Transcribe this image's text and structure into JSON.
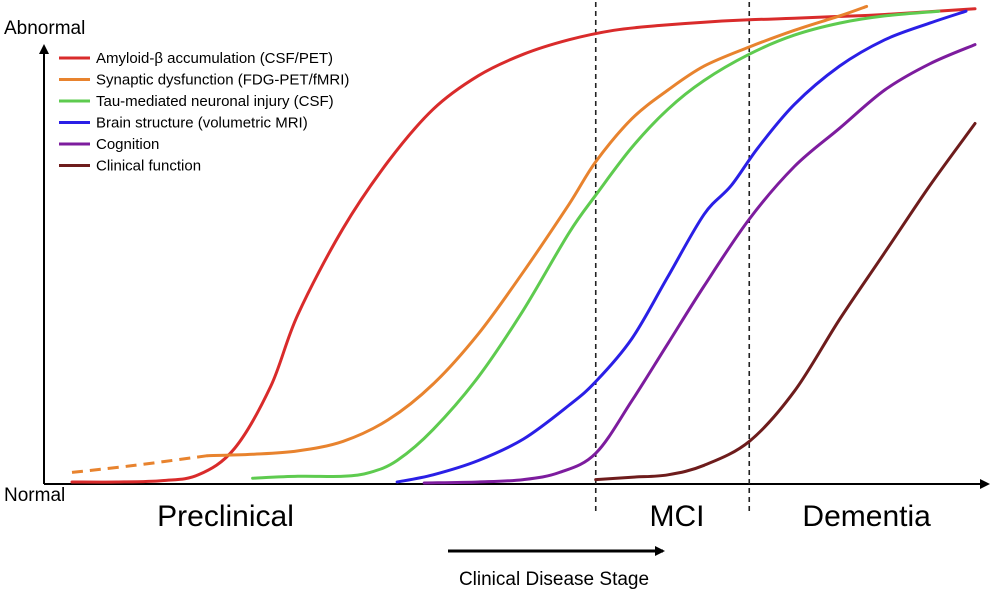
{
  "chart_data": {
    "type": "line",
    "ylabel_top": "Abnormal",
    "ylabel_bottom": "Normal",
    "xlabel": "Clinical Disease Stage",
    "xlim": [
      0,
      100
    ],
    "ylim": [
      0,
      100
    ],
    "grid": false,
    "legend_position": "top-left",
    "stages": [
      {
        "label": "Preclinical",
        "center": 17
      },
      {
        "label": "MCI",
        "center": 67
      },
      {
        "label": "Dementia",
        "center": 88
      }
    ],
    "stage_boundaries": [
      58,
      75
    ],
    "series": [
      {
        "name": "Amyloid-β accumulation (CSF/PET)",
        "color": "#d92b2b",
        "dashed_until": null,
        "x": [
          0,
          5,
          10,
          14,
          18,
          22,
          25,
          30,
          35,
          40,
          45,
          50,
          55,
          60,
          65,
          70,
          75,
          80,
          85,
          90,
          100
        ],
        "y": [
          0,
          0,
          0.3,
          1.5,
          7,
          20,
          35,
          53,
          67,
          78,
          85,
          89.5,
          92.5,
          94.5,
          95.5,
          96.2,
          96.7,
          97,
          97.4,
          97.8,
          99
        ]
      },
      {
        "name": "Synaptic dysfunction (FDG-PET/fMRI)",
        "color": "#e8832e",
        "dashed_until": 15,
        "x": [
          0,
          7,
          15,
          20,
          25,
          30,
          35,
          40,
          45,
          50,
          55,
          58,
          62,
          66,
          70,
          75,
          80,
          85,
          88
        ],
        "y": [
          2,
          3.5,
          5.5,
          5.8,
          6.5,
          8.5,
          13,
          20.5,
          31,
          44,
          58,
          67,
          76,
          82,
          87,
          91,
          94.5,
          97.5,
          99.5
        ]
      },
      {
        "name": "Tau-mediated neuronal injury (CSF)",
        "color": "#5ecb4f",
        "dashed_until": null,
        "x": [
          20,
          25,
          30,
          33,
          36,
          40,
          45,
          50,
          55,
          58,
          62,
          66,
          70,
          75,
          80,
          85,
          90,
          96
        ],
        "y": [
          0.8,
          1.2,
          1.2,
          2,
          4.5,
          11,
          22,
          36,
          52,
          60,
          70,
          78,
          84,
          89.5,
          93.5,
          96,
          97.5,
          98.5
        ]
      },
      {
        "name": "Brain structure (volumetric MRI)",
        "color": "#2a1fe6",
        "dashed_until": null,
        "x": [
          36,
          40,
          45,
          50,
          55,
          58,
          62,
          66,
          70,
          73,
          76,
          80,
          85,
          90,
          95,
          99
        ],
        "y": [
          0,
          1.5,
          4.5,
          9,
          16,
          21,
          30,
          43,
          56,
          62,
          70,
          79,
          87,
          92.5,
          96,
          98.5
        ]
      },
      {
        "name": "Cognition",
        "color": "#7d1c9e",
        "dashed_until": null,
        "x": [
          39,
          45,
          50,
          54,
          58,
          62,
          66,
          70,
          75,
          80,
          85,
          90,
          95,
          100
        ],
        "y": [
          -0.2,
          0,
          0.5,
          2,
          6,
          17,
          29,
          41,
          55,
          66,
          74,
          82,
          87.5,
          91.5
        ]
      },
      {
        "name": "Clinical function",
        "color": "#6e1c1c",
        "dashed_until": null,
        "x": [
          58,
          62,
          66,
          70,
          75,
          80,
          85,
          90,
          95,
          100
        ],
        "y": [
          0.5,
          1,
          1.5,
          3.5,
          8.5,
          19,
          34,
          48,
          62,
          75
        ]
      }
    ]
  }
}
